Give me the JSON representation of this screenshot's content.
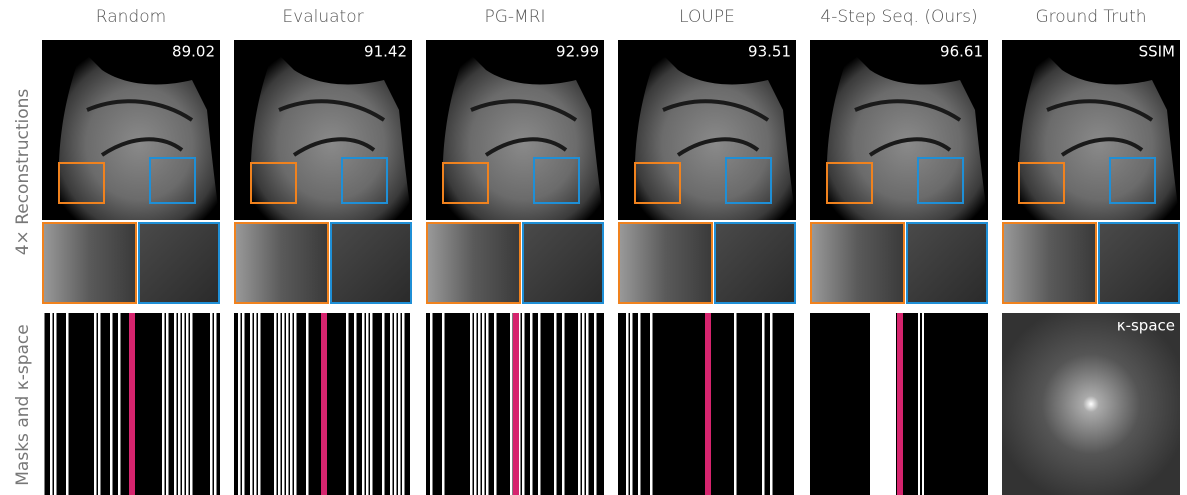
{
  "columns": [
    {
      "title": "Random",
      "score": "89.02"
    },
    {
      "title": "Evaluator",
      "score": "91.42"
    },
    {
      "title": "PG-MRI",
      "score": "92.99"
    },
    {
      "title": "LOUPE",
      "score": "93.51"
    },
    {
      "title": "4-Step Seq. (Ours)",
      "score": "96.61"
    },
    {
      "title": "Ground Truth",
      "score": "SSIM"
    }
  ],
  "row_labels": [
    "4× Reconstructions",
    "Masks and κ-space"
  ],
  "kspace_label": "κ-space"
}
